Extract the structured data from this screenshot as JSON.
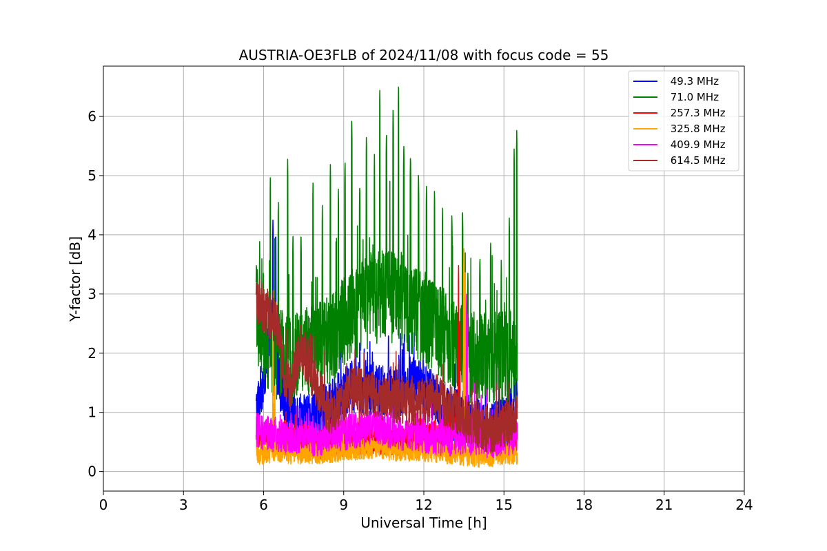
{
  "chart_data": {
    "type": "line",
    "title": "AUSTRIA-OE3FLB of 2024/11/08 with focus code = 55",
    "xlabel": "Universal Time [h]",
    "ylabel": "Y-factor [dB]",
    "xlim": [
      0,
      24
    ],
    "ylim": [
      -0.33,
      6.85
    ],
    "xticks": [
      0,
      3,
      6,
      9,
      12,
      15,
      18,
      21,
      24
    ],
    "yticks": [
      0,
      1,
      2,
      3,
      4,
      5,
      6
    ],
    "grid": true,
    "legend_position": "top-right",
    "x_range_of_data": [
      5.72,
      15.5
    ],
    "series": [
      {
        "name": " 49.3 MHz",
        "color": "#0000ff",
        "profile": [
          [
            5.72,
            1.0
          ],
          [
            6.0,
            1.6
          ],
          [
            6.3,
            2.4
          ],
          [
            6.6,
            1.5
          ],
          [
            7.0,
            1.0
          ],
          [
            7.5,
            0.9
          ],
          [
            8.0,
            0.95
          ],
          [
            8.5,
            1.1
          ],
          [
            9.0,
            1.3
          ],
          [
            9.5,
            1.45
          ],
          [
            10.0,
            1.4
          ],
          [
            10.5,
            1.3
          ],
          [
            11.0,
            1.35
          ],
          [
            11.5,
            1.5
          ],
          [
            12.0,
            1.4
          ],
          [
            12.5,
            1.2
          ],
          [
            13.0,
            1.0
          ],
          [
            13.5,
            0.9
          ],
          [
            14.0,
            0.8
          ],
          [
            14.5,
            0.75
          ],
          [
            15.0,
            0.8
          ],
          [
            15.5,
            1.2
          ]
        ],
        "noise": 0.45,
        "peaks": [
          [
            6.35,
            4.3
          ],
          [
            6.45,
            4.1
          ],
          [
            9.3,
            2.0
          ],
          [
            11.6,
            2.0
          ],
          [
            15.4,
            1.9
          ]
        ]
      },
      {
        "name": " 71.0 MHz",
        "color": "#008000",
        "profile": [
          [
            5.72,
            2.5
          ],
          [
            6.0,
            2.2
          ],
          [
            6.5,
            2.0
          ],
          [
            7.0,
            1.9
          ],
          [
            7.5,
            2.0
          ],
          [
            8.0,
            2.1
          ],
          [
            8.5,
            2.2
          ],
          [
            9.0,
            2.5
          ],
          [
            9.5,
            2.7
          ],
          [
            10.0,
            2.9
          ],
          [
            10.5,
            3.0
          ],
          [
            11.0,
            2.95
          ],
          [
            11.5,
            2.8
          ],
          [
            12.0,
            2.6
          ],
          [
            12.5,
            2.4
          ],
          [
            13.0,
            2.2
          ],
          [
            13.5,
            2.0
          ],
          [
            14.0,
            1.9
          ],
          [
            14.5,
            1.9
          ],
          [
            15.0,
            1.9
          ],
          [
            15.5,
            2.0
          ]
        ],
        "noise": 0.8,
        "peaks": [
          [
            5.73,
            3.6
          ],
          [
            5.85,
            3.6
          ],
          [
            6.25,
            5.0
          ],
          [
            6.55,
            4.6
          ],
          [
            6.9,
            5.3
          ],
          [
            7.1,
            4.1
          ],
          [
            7.4,
            4.1
          ],
          [
            7.85,
            4.9
          ],
          [
            8.2,
            4.5
          ],
          [
            8.5,
            5.2
          ],
          [
            8.8,
            4.8
          ],
          [
            9.05,
            5.3
          ],
          [
            9.3,
            6.05
          ],
          [
            9.6,
            4.9
          ],
          [
            9.85,
            5.7
          ],
          [
            10.15,
            5.4
          ],
          [
            10.35,
            6.5
          ],
          [
            10.6,
            5.8
          ],
          [
            10.85,
            6.2
          ],
          [
            11.05,
            6.5
          ],
          [
            11.25,
            5.6
          ],
          [
            11.5,
            5.4
          ],
          [
            11.8,
            5.1
          ],
          [
            12.1,
            4.9
          ],
          [
            12.4,
            4.8
          ],
          [
            12.7,
            4.5
          ],
          [
            13.05,
            4.4
          ],
          [
            13.45,
            4.5
          ],
          [
            13.65,
            3.4
          ],
          [
            14.1,
            3.7
          ],
          [
            14.5,
            3.9
          ],
          [
            14.9,
            3.6
          ],
          [
            15.2,
            4.3
          ],
          [
            15.38,
            5.5
          ],
          [
            15.48,
            5.8
          ]
        ]
      },
      {
        "name": " 257.3 MHz",
        "color": "#ff0000",
        "profile": [
          [
            5.72,
            0.6
          ],
          [
            6.5,
            0.55
          ],
          [
            7.0,
            0.5
          ],
          [
            8.0,
            0.45
          ],
          [
            9.0,
            0.5
          ],
          [
            10.0,
            0.55
          ],
          [
            11.0,
            0.5
          ],
          [
            12.0,
            0.55
          ],
          [
            13.0,
            0.7
          ],
          [
            13.5,
            0.9
          ],
          [
            14.0,
            0.7
          ],
          [
            14.5,
            0.6
          ],
          [
            15.0,
            0.55
          ],
          [
            15.5,
            0.6
          ]
        ],
        "noise": 0.25,
        "peaks": [
          [
            13.3,
            3.5
          ],
          [
            13.35,
            2.6
          ],
          [
            15.1,
            0.9
          ]
        ]
      },
      {
        "name": " 325.8 MHz",
        "color": "#ffa500",
        "profile": [
          [
            5.72,
            0.3
          ],
          [
            6.0,
            0.3
          ],
          [
            6.5,
            0.35
          ],
          [
            7.0,
            0.3
          ],
          [
            8.0,
            0.3
          ],
          [
            9.0,
            0.35
          ],
          [
            10.0,
            0.4
          ],
          [
            11.0,
            0.35
          ],
          [
            12.0,
            0.35
          ],
          [
            13.0,
            0.3
          ],
          [
            14.0,
            0.25
          ],
          [
            14.5,
            0.25
          ],
          [
            15.0,
            0.3
          ],
          [
            15.5,
            0.3
          ]
        ],
        "noise": 0.18,
        "peaks": [
          [
            6.35,
            2.5
          ],
          [
            6.42,
            1.5
          ],
          [
            13.5,
            3.85
          ],
          [
            13.55,
            3.4
          ]
        ]
      },
      {
        "name": " 409.9 MHz",
        "color": "#ff00ff",
        "profile": [
          [
            5.72,
            0.7
          ],
          [
            6.0,
            0.65
          ],
          [
            7.0,
            0.6
          ],
          [
            8.0,
            0.55
          ],
          [
            9.0,
            0.65
          ],
          [
            10.0,
            0.75
          ],
          [
            11.0,
            0.65
          ],
          [
            12.0,
            0.6
          ],
          [
            13.0,
            0.55
          ],
          [
            13.5,
            0.6
          ],
          [
            14.0,
            0.55
          ],
          [
            14.5,
            0.5
          ],
          [
            15.0,
            0.55
          ],
          [
            15.5,
            0.6
          ]
        ],
        "noise": 0.3,
        "peaks": [
          [
            13.6,
            3.0
          ],
          [
            13.62,
            2.7
          ],
          [
            13.9,
            1.5
          ],
          [
            14.35,
            1.5
          ],
          [
            15.2,
            1.3
          ]
        ]
      },
      {
        "name": " 614.5 MHz",
        "color": "#a52a2a",
        "profile": [
          [
            5.72,
            2.9
          ],
          [
            6.0,
            2.75
          ],
          [
            6.5,
            2.5
          ],
          [
            6.8,
            1.5
          ],
          [
            7.0,
            1.4
          ],
          [
            7.4,
            2.1
          ],
          [
            7.7,
            1.8
          ],
          [
            8.0,
            1.4
          ],
          [
            8.3,
            1.15
          ],
          [
            8.6,
            0.9
          ],
          [
            8.8,
            1.1
          ],
          [
            9.0,
            1.2
          ],
          [
            9.3,
            1.4
          ],
          [
            9.7,
            1.35
          ],
          [
            10.0,
            1.3
          ],
          [
            10.5,
            1.25
          ],
          [
            11.0,
            1.2
          ],
          [
            11.5,
            1.15
          ],
          [
            12.0,
            1.2
          ],
          [
            12.5,
            1.25
          ],
          [
            13.0,
            1.1
          ],
          [
            13.5,
            0.9
          ],
          [
            14.0,
            0.8
          ],
          [
            14.5,
            0.7
          ],
          [
            15.0,
            0.8
          ],
          [
            15.5,
            0.9
          ]
        ],
        "noise": 0.4,
        "peaks": [
          [
            5.73,
            3.3
          ],
          [
            9.0,
            0.05
          ],
          [
            15.1,
            0.05
          ],
          [
            15.3,
            0.05
          ]
        ]
      }
    ]
  }
}
